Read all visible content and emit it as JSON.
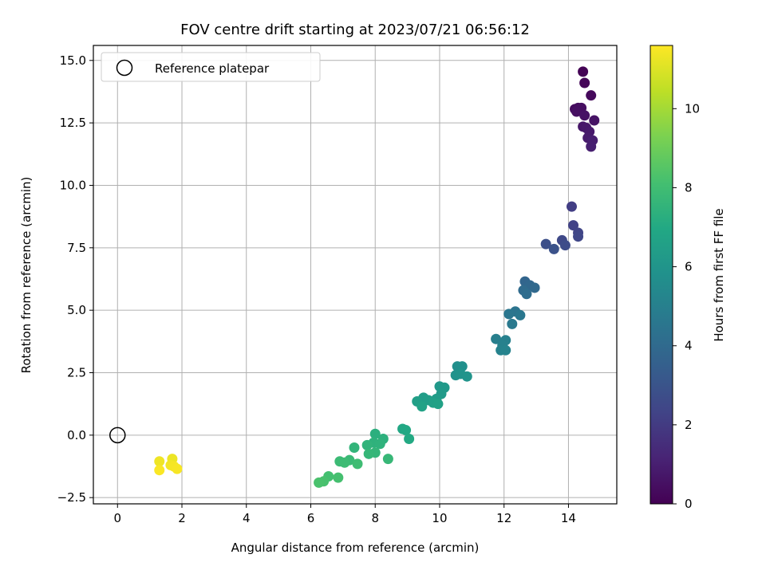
{
  "chart_data": {
    "type": "scatter",
    "title": "FOV centre drift starting at 2023/07/21 06:56:12",
    "xlabel": "Angular distance from reference (arcmin)",
    "ylabel": "Rotation from reference (arcmin)",
    "xlim": [
      -0.75,
      15.5
    ],
    "ylim": [
      -2.75,
      15.6
    ],
    "xticks": [
      0,
      2,
      4,
      6,
      8,
      10,
      12,
      14
    ],
    "yticks": [
      -2.5,
      0.0,
      2.5,
      5.0,
      7.5,
      10.0,
      12.5,
      15.0
    ],
    "grid": true,
    "legend": {
      "position": "upper-left",
      "entries": [
        "Reference platepar"
      ]
    },
    "reference_point": {
      "x": 0,
      "y": 0,
      "label": "Reference platepar"
    },
    "colorbar": {
      "label": "Hours from first FF file",
      "colormap": "viridis",
      "range": [
        0,
        11.6
      ],
      "ticks": [
        0,
        2,
        4,
        6,
        8,
        10
      ]
    },
    "points": [
      {
        "x": 14.45,
        "y": 14.55,
        "c": 0.05
      },
      {
        "x": 14.5,
        "y": 14.1,
        "c": 0.15
      },
      {
        "x": 14.7,
        "y": 13.6,
        "c": 0.25
      },
      {
        "x": 14.2,
        "y": 13.05,
        "c": 0.35
      },
      {
        "x": 14.3,
        "y": 13.1,
        "c": 0.4
      },
      {
        "x": 14.4,
        "y": 13.1,
        "c": 0.45
      },
      {
        "x": 14.25,
        "y": 12.95,
        "c": 0.5
      },
      {
        "x": 14.5,
        "y": 12.8,
        "c": 0.55
      },
      {
        "x": 14.8,
        "y": 12.6,
        "c": 0.6
      },
      {
        "x": 14.45,
        "y": 12.35,
        "c": 0.7
      },
      {
        "x": 14.55,
        "y": 12.3,
        "c": 0.75
      },
      {
        "x": 14.65,
        "y": 12.15,
        "c": 0.8
      },
      {
        "x": 14.6,
        "y": 11.9,
        "c": 0.85
      },
      {
        "x": 14.75,
        "y": 11.8,
        "c": 0.95
      },
      {
        "x": 14.7,
        "y": 11.55,
        "c": 1.0
      },
      {
        "x": 14.1,
        "y": 9.15,
        "c": 2.1
      },
      {
        "x": 14.15,
        "y": 8.4,
        "c": 2.25
      },
      {
        "x": 14.3,
        "y": 8.1,
        "c": 2.35
      },
      {
        "x": 14.3,
        "y": 7.95,
        "c": 2.45
      },
      {
        "x": 13.8,
        "y": 7.8,
        "c": 2.55
      },
      {
        "x": 13.9,
        "y": 7.6,
        "c": 2.65
      },
      {
        "x": 13.3,
        "y": 7.65,
        "c": 2.8
      },
      {
        "x": 13.55,
        "y": 7.45,
        "c": 2.9
      },
      {
        "x": 12.65,
        "y": 6.15,
        "c": 3.75
      },
      {
        "x": 12.8,
        "y": 6.0,
        "c": 3.85
      },
      {
        "x": 12.95,
        "y": 5.9,
        "c": 3.95
      },
      {
        "x": 12.6,
        "y": 5.8,
        "c": 4.05
      },
      {
        "x": 12.7,
        "y": 5.65,
        "c": 4.15
      },
      {
        "x": 12.35,
        "y": 4.95,
        "c": 4.45
      },
      {
        "x": 12.15,
        "y": 4.85,
        "c": 4.55
      },
      {
        "x": 12.5,
        "y": 4.8,
        "c": 4.6
      },
      {
        "x": 12.25,
        "y": 4.45,
        "c": 4.7
      },
      {
        "x": 11.75,
        "y": 3.85,
        "c": 4.95
      },
      {
        "x": 12.05,
        "y": 3.8,
        "c": 5.0
      },
      {
        "x": 11.95,
        "y": 3.6,
        "c": 5.05
      },
      {
        "x": 11.9,
        "y": 3.4,
        "c": 5.1
      },
      {
        "x": 12.05,
        "y": 3.4,
        "c": 5.15
      },
      {
        "x": 10.55,
        "y": 2.75,
        "c": 5.7
      },
      {
        "x": 10.7,
        "y": 2.75,
        "c": 5.75
      },
      {
        "x": 10.5,
        "y": 2.4,
        "c": 5.85
      },
      {
        "x": 10.65,
        "y": 2.45,
        "c": 5.9
      },
      {
        "x": 10.85,
        "y": 2.35,
        "c": 5.95
      },
      {
        "x": 10.0,
        "y": 1.95,
        "c": 6.15
      },
      {
        "x": 10.15,
        "y": 1.9,
        "c": 6.2
      },
      {
        "x": 10.05,
        "y": 1.65,
        "c": 6.25
      },
      {
        "x": 9.9,
        "y": 1.45,
        "c": 6.35
      },
      {
        "x": 9.5,
        "y": 1.5,
        "c": 6.4
      },
      {
        "x": 9.65,
        "y": 1.4,
        "c": 6.45
      },
      {
        "x": 9.3,
        "y": 1.35,
        "c": 6.5
      },
      {
        "x": 9.8,
        "y": 1.3,
        "c": 6.55
      },
      {
        "x": 9.95,
        "y": 1.25,
        "c": 6.6
      },
      {
        "x": 9.45,
        "y": 1.15,
        "c": 6.65
      },
      {
        "x": 8.85,
        "y": 0.25,
        "c": 6.9
      },
      {
        "x": 8.95,
        "y": 0.2,
        "c": 6.95
      },
      {
        "x": 9.05,
        "y": -0.15,
        "c": 7.0
      },
      {
        "x": 8.0,
        "y": 0.05,
        "c": 7.3
      },
      {
        "x": 8.25,
        "y": -0.15,
        "c": 7.35
      },
      {
        "x": 7.95,
        "y": -0.3,
        "c": 7.4
      },
      {
        "x": 8.15,
        "y": -0.35,
        "c": 7.45
      },
      {
        "x": 7.75,
        "y": -0.4,
        "c": 7.5
      },
      {
        "x": 7.35,
        "y": -0.5,
        "c": 7.55
      },
      {
        "x": 8.0,
        "y": -0.7,
        "c": 7.6
      },
      {
        "x": 7.8,
        "y": -0.75,
        "c": 7.65
      },
      {
        "x": 8.4,
        "y": -0.95,
        "c": 7.7
      },
      {
        "x": 7.2,
        "y": -1.0,
        "c": 7.8
      },
      {
        "x": 6.9,
        "y": -1.05,
        "c": 7.85
      },
      {
        "x": 7.05,
        "y": -1.1,
        "c": 7.9
      },
      {
        "x": 7.45,
        "y": -1.15,
        "c": 7.95
      },
      {
        "x": 6.55,
        "y": -1.65,
        "c": 8.1
      },
      {
        "x": 6.85,
        "y": -1.7,
        "c": 8.15
      },
      {
        "x": 6.4,
        "y": -1.85,
        "c": 8.2
      },
      {
        "x": 6.25,
        "y": -1.9,
        "c": 8.25
      },
      {
        "x": 1.7,
        "y": -0.95,
        "c": 11.3
      },
      {
        "x": 1.3,
        "y": -1.05,
        "c": 11.35
      },
      {
        "x": 1.65,
        "y": -1.2,
        "c": 11.4
      },
      {
        "x": 1.75,
        "y": -1.25,
        "c": 11.45
      },
      {
        "x": 1.85,
        "y": -1.35,
        "c": 11.5
      },
      {
        "x": 1.3,
        "y": -1.4,
        "c": 11.55
      }
    ]
  }
}
